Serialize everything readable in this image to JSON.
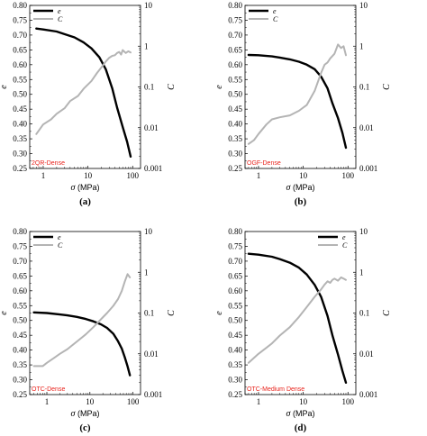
{
  "colors": {
    "e_line": "#000000",
    "c_line": "#b4b4b4",
    "sample_label": "#e8231c"
  },
  "legend": {
    "e": "e",
    "c": "C"
  },
  "axis_titles": {
    "left": "e",
    "right": "C",
    "x_prefix": "σ",
    "x_suffix": " (MPa)"
  },
  "chart_data": [
    {
      "type": "line",
      "panel": "(a)",
      "sample_label": "2QR-Dense",
      "legend_position": "top-left",
      "x_scale": "log",
      "xlim": [
        0.5,
        150
      ],
      "x_ticks": [
        "1",
        "10",
        "100"
      ],
      "y_left": {
        "lim": [
          0.25,
          0.8
        ],
        "ticks": [
          "0.25",
          "0.30",
          "0.35",
          "0.40",
          "0.45",
          "0.50",
          "0.55",
          "0.60",
          "0.65",
          "0.70",
          "0.75",
          "0.80"
        ]
      },
      "y_right": {
        "scale": "log",
        "lim": [
          0.001,
          10
        ],
        "ticks": [
          "0.001",
          "0.01",
          "0.1",
          "1",
          "10"
        ]
      },
      "series": [
        {
          "name": "e",
          "axis": "left",
          "x": [
            0.7,
            1,
            2,
            3,
            5,
            8,
            12,
            18,
            25,
            35,
            45,
            60,
            75,
            90
          ],
          "values": [
            0.722,
            0.719,
            0.712,
            0.703,
            0.692,
            0.675,
            0.655,
            0.625,
            0.585,
            0.52,
            0.455,
            0.39,
            0.34,
            0.29
          ]
        },
        {
          "name": "C",
          "axis": "right",
          "x": [
            0.7,
            1,
            1.5,
            2,
            3,
            4,
            6,
            8,
            12,
            16,
            20,
            25,
            30,
            35,
            40,
            45,
            50,
            55,
            60,
            70,
            80,
            90
          ],
          "values": [
            0.007,
            0.012,
            0.016,
            0.022,
            0.03,
            0.045,
            0.06,
            0.09,
            0.14,
            0.22,
            0.3,
            0.42,
            0.52,
            0.58,
            0.6,
            0.68,
            0.72,
            0.62,
            0.8,
            0.68,
            0.75,
            0.7
          ]
        }
      ]
    },
    {
      "type": "line",
      "panel": "(b)",
      "sample_label": "OGF-Dense",
      "legend_position": "top-left",
      "x_scale": "log",
      "xlim": [
        0.5,
        150
      ],
      "x_ticks": [
        "1",
        "10",
        "100"
      ],
      "y_left": {
        "lim": [
          0.25,
          0.8
        ],
        "ticks": [
          "0.25",
          "0.30",
          "0.35",
          "0.40",
          "0.45",
          "0.50",
          "0.55",
          "0.60",
          "0.65",
          "0.70",
          "0.75",
          "0.80"
        ]
      },
      "y_right": {
        "scale": "log",
        "lim": [
          0.001,
          10
        ],
        "ticks": [
          "0.001",
          "0.01",
          "0.1",
          "1",
          "10"
        ]
      },
      "series": [
        {
          "name": "e",
          "axis": "left",
          "x": [
            0.6,
            1,
            2,
            3,
            5,
            8,
            12,
            18,
            25,
            35,
            45,
            60,
            75,
            90
          ],
          "values": [
            0.633,
            0.632,
            0.628,
            0.624,
            0.618,
            0.61,
            0.6,
            0.585,
            0.56,
            0.52,
            0.47,
            0.42,
            0.37,
            0.32
          ]
        },
        {
          "name": "C",
          "axis": "right",
          "x": [
            0.6,
            0.8,
            1,
            1.5,
            2,
            3,
            5,
            8,
            12,
            18,
            25,
            30,
            35,
            40,
            50,
            60,
            70,
            80,
            90
          ],
          "values": [
            0.004,
            0.005,
            0.007,
            0.012,
            0.016,
            0.018,
            0.02,
            0.026,
            0.036,
            0.08,
            0.22,
            0.35,
            0.4,
            0.5,
            0.65,
            1.1,
            0.9,
            1.0,
            0.6
          ]
        }
      ]
    },
    {
      "type": "line",
      "panel": "(c)",
      "sample_label": "OTC-Dense",
      "legend_position": "top-left",
      "x_scale": "log",
      "xlim": [
        0.4,
        150
      ],
      "x_ticks": [
        "1",
        "10",
        "100"
      ],
      "y_left": {
        "lim": [
          0.25,
          0.8
        ],
        "ticks": [
          "0.25",
          "0.30",
          "0.35",
          "0.40",
          "0.45",
          "0.50",
          "0.55",
          "0.60",
          "0.65",
          "0.70",
          "0.75",
          "0.80"
        ]
      },
      "y_right": {
        "scale": "log",
        "lim": [
          0.001,
          10
        ],
        "ticks": [
          "0.001",
          "0.01",
          "0.1",
          "1",
          "10"
        ]
      },
      "series": [
        {
          "name": "e",
          "axis": "left",
          "x": [
            0.5,
            1,
            2,
            3,
            5,
            8,
            12,
            18,
            25,
            35,
            45,
            55,
            65,
            75,
            85
          ],
          "values": [
            0.527,
            0.525,
            0.52,
            0.517,
            0.512,
            0.505,
            0.497,
            0.487,
            0.475,
            0.455,
            0.43,
            0.405,
            0.375,
            0.345,
            0.315
          ]
        },
        {
          "name": "C",
          "axis": "right",
          "x": [
            0.5,
            0.8,
            1,
            1.5,
            2,
            3,
            5,
            8,
            12,
            18,
            25,
            35,
            45,
            55,
            65,
            75,
            85
          ],
          "values": [
            0.005,
            0.005,
            0.006,
            0.008,
            0.01,
            0.013,
            0.02,
            0.03,
            0.045,
            0.07,
            0.1,
            0.15,
            0.22,
            0.35,
            0.6,
            0.9,
            0.75
          ]
        }
      ]
    },
    {
      "type": "line",
      "panel": "(d)",
      "sample_label": "OTC-Medium Dense",
      "legend_position": "top-right",
      "x_scale": "log",
      "xlim": [
        0.5,
        150
      ],
      "x_ticks": [
        "1",
        "10",
        "100"
      ],
      "y_left": {
        "lim": [
          0.25,
          0.8
        ],
        "ticks": [
          "0.25",
          "0.30",
          "0.35",
          "0.40",
          "0.45",
          "0.50",
          "0.55",
          "0.60",
          "0.65",
          "0.70",
          "0.75",
          "0.80"
        ]
      },
      "y_right": {
        "scale": "log",
        "lim": [
          0.001,
          10
        ],
        "ticks": [
          "0.001",
          "0.01",
          "0.1",
          "1",
          "10"
        ]
      },
      "series": [
        {
          "name": "e",
          "axis": "left",
          "x": [
            0.6,
            1,
            2,
            3,
            5,
            8,
            12,
            18,
            25,
            35,
            45,
            60,
            75,
            90
          ],
          "values": [
            0.725,
            0.722,
            0.715,
            0.707,
            0.695,
            0.678,
            0.655,
            0.62,
            0.58,
            0.515,
            0.45,
            0.385,
            0.33,
            0.29
          ]
        },
        {
          "name": "C",
          "axis": "right",
          "x": [
            0.6,
            1,
            1.5,
            2,
            3,
            5,
            8,
            12,
            18,
            25,
            30,
            35,
            40,
            45,
            50,
            60,
            70,
            80,
            90
          ],
          "values": [
            0.006,
            0.01,
            0.014,
            0.018,
            0.028,
            0.045,
            0.08,
            0.14,
            0.25,
            0.38,
            0.5,
            0.6,
            0.55,
            0.65,
            0.7,
            0.62,
            0.75,
            0.7,
            0.65
          ]
        }
      ]
    }
  ]
}
